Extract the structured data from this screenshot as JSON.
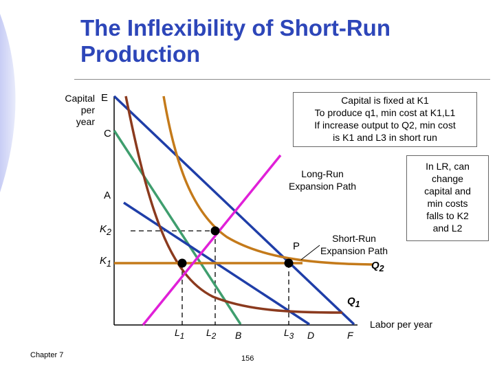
{
  "title": "The Inflexibility of Short-Run Production",
  "y_axis_label": [
    "Capital",
    "per",
    "year"
  ],
  "x_axis_label": "Labor per year",
  "points": {
    "E": "E",
    "C": "C",
    "A": "A",
    "P": "P"
  },
  "capital_ticks": [
    {
      "main": "K",
      "sub": "2"
    },
    {
      "main": "K",
      "sub": "1"
    }
  ],
  "labor_ticks": [
    {
      "main": "L",
      "sub": "1"
    },
    {
      "main": "L",
      "sub": "2"
    },
    {
      "main": "B",
      "sub": ""
    },
    {
      "main": "L",
      "sub": "3"
    },
    {
      "main": "D",
      "sub": ""
    },
    {
      "main": "F",
      "sub": ""
    }
  ],
  "quantities": [
    {
      "main": "Q",
      "sub": "2"
    },
    {
      "main": "Q",
      "sub": "1"
    }
  ],
  "path_labels": {
    "long_run": [
      "Long-Run",
      "Expansion Path"
    ],
    "short_run": [
      "Short-Run",
      "Expansion Path"
    ]
  },
  "note_box": [
    "Capital is fixed at K1",
    "To produce q1, min cost at K1,L1",
    "If increase output to Q2, min cost",
    "is K1 and L3 in short run"
  ],
  "lr_box": [
    "In LR, can",
    "change",
    "capital and",
    "min costs",
    "falls to K2",
    "and L2"
  ],
  "footer_left": "Chapter 7",
  "footer_page": "156",
  "colors": {
    "title": "#2d46b9",
    "isocost": "#1f3ea8",
    "isocost_mid": "#3f9e6e",
    "long_run_path": "#e020d8",
    "short_run_path": "#c47a1a",
    "isoquant_q1": "#8b3a1e",
    "isoquant_q2": "#c47a1a"
  }
}
